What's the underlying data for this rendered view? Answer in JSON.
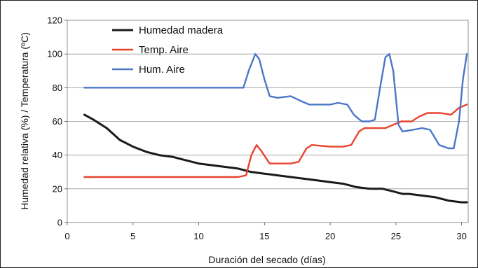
{
  "chart_data": {
    "type": "line",
    "xlabel": "Duración del secado (días)",
    "ylabel": "Humedad relativa (%) / Temperatura (ºC)",
    "xlim": [
      0,
      30.5
    ],
    "ylim": [
      0,
      120
    ],
    "xticks": [
      0,
      5,
      10,
      15,
      20,
      25,
      30
    ],
    "yticks": [
      0,
      20,
      40,
      60,
      80,
      100,
      120
    ],
    "grid": "horizontal",
    "legend_position": "top-left",
    "series": [
      {
        "name": "Humedad madera",
        "color": "#1a1a1a",
        "points": [
          [
            1.3,
            64
          ],
          [
            2,
            61
          ],
          [
            3,
            56
          ],
          [
            4,
            49
          ],
          [
            5,
            45
          ],
          [
            6,
            42
          ],
          [
            7,
            40
          ],
          [
            8,
            39
          ],
          [
            9,
            37
          ],
          [
            10,
            35
          ],
          [
            11,
            34
          ],
          [
            12,
            33
          ],
          [
            13,
            32
          ],
          [
            14,
            30
          ],
          [
            15,
            29
          ],
          [
            16,
            28
          ],
          [
            17,
            27
          ],
          [
            18,
            26
          ],
          [
            19,
            25
          ],
          [
            20,
            24
          ],
          [
            21,
            23
          ],
          [
            22,
            21
          ],
          [
            23,
            20
          ],
          [
            24,
            20
          ],
          [
            25,
            18
          ],
          [
            25.5,
            17
          ],
          [
            26,
            17
          ],
          [
            27,
            16
          ],
          [
            28,
            15
          ],
          [
            29,
            13
          ],
          [
            30,
            12
          ],
          [
            30.4,
            12
          ]
        ]
      },
      {
        "name": "Temp. Aire",
        "color": "#e8432e",
        "points": [
          [
            1.3,
            27
          ],
          [
            5,
            27
          ],
          [
            10,
            27
          ],
          [
            13,
            27
          ],
          [
            13.6,
            28
          ],
          [
            14,
            40
          ],
          [
            14.4,
            46
          ],
          [
            14.8,
            42
          ],
          [
            15.4,
            35
          ],
          [
            16,
            35
          ],
          [
            17,
            35
          ],
          [
            17.6,
            36
          ],
          [
            18.2,
            44
          ],
          [
            18.6,
            46
          ],
          [
            20,
            45
          ],
          [
            21,
            45
          ],
          [
            21.6,
            46
          ],
          [
            22.2,
            54
          ],
          [
            22.6,
            56
          ],
          [
            23.5,
            56
          ],
          [
            24.2,
            56
          ],
          [
            24.8,
            58
          ],
          [
            25.4,
            60
          ],
          [
            26.2,
            60
          ],
          [
            26.8,
            63
          ],
          [
            27.4,
            65
          ],
          [
            28.4,
            65
          ],
          [
            29.2,
            64
          ],
          [
            29.8,
            68
          ],
          [
            30.4,
            70
          ]
        ]
      },
      {
        "name": "Hum. Aire",
        "color": "#4a77c8",
        "points": [
          [
            1.3,
            80
          ],
          [
            10,
            80
          ],
          [
            13,
            80
          ],
          [
            13.4,
            80
          ],
          [
            13.8,
            90
          ],
          [
            14.3,
            100
          ],
          [
            14.6,
            97
          ],
          [
            15,
            85
          ],
          [
            15.4,
            75
          ],
          [
            16,
            74
          ],
          [
            17,
            75
          ],
          [
            17.8,
            72
          ],
          [
            18.4,
            70
          ],
          [
            19,
            70
          ],
          [
            20,
            70
          ],
          [
            20.6,
            71
          ],
          [
            21.3,
            70
          ],
          [
            21.8,
            64
          ],
          [
            22.4,
            60
          ],
          [
            23,
            60
          ],
          [
            23.4,
            61
          ],
          [
            23.8,
            80
          ],
          [
            24.2,
            98
          ],
          [
            24.5,
            100
          ],
          [
            24.8,
            90
          ],
          [
            25.2,
            58
          ],
          [
            25.5,
            54
          ],
          [
            26.3,
            55
          ],
          [
            27,
            56
          ],
          [
            27.6,
            55
          ],
          [
            28.3,
            46
          ],
          [
            29,
            44
          ],
          [
            29.4,
            44
          ],
          [
            29.8,
            60
          ],
          [
            30.1,
            85
          ],
          [
            30.4,
            100
          ]
        ]
      }
    ]
  }
}
